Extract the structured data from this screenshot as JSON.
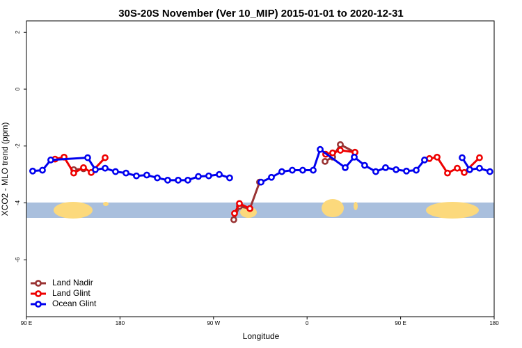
{
  "chart_data": {
    "type": "line",
    "title": "30S-20S November (Ver 10_MIP)   2015-01-01 to 2020-12-31",
    "xlabel": "Longitude",
    "ylabel": "XCO2 - MLO trend (ppm)",
    "xlim": [
      90,
      540
    ],
    "ylim": [
      -8,
      2.4
    ],
    "xticks": [
      {
        "value": 90,
        "label": "90 E"
      },
      {
        "value": 180,
        "label": "180"
      },
      {
        "value": 270,
        "label": "90 W"
      },
      {
        "value": 360,
        "label": "0"
      },
      {
        "value": 450,
        "label": "90 E"
      },
      {
        "value": 540,
        "label": "180"
      }
    ],
    "yticks": [
      2,
      0,
      -2,
      -4,
      -6
    ],
    "legend": "bottom-left",
    "series": [
      {
        "name": "Land Nadir",
        "color": "#993333",
        "x": [
          135.5,
          144.9,
          null,
          289.5,
          294.9,
          305.0,
          314.3,
          null,
          377.3,
          384.6,
          392.0,
          406.1
        ],
        "values": [
          -2.83,
          -2.8,
          null,
          -4.59,
          -4.12,
          -4.2,
          -3.27,
          null,
          -2.54,
          -2.39,
          -1.95,
          -2.22
        ]
      },
      {
        "name": "Land Glint",
        "color": "#ee0000",
        "x": [
          117.5,
          126.2,
          135.5,
          144.9,
          152.3,
          165.7,
          null,
          290.2,
          294.9,
          305.0,
          null,
          377.9,
          384.6,
          392.0,
          406.1,
          null,
          477.7,
          485.1,
          495.1,
          504.5,
          511.2,
          525.9
        ],
        "values": [
          -2.46,
          -2.39,
          -2.95,
          -2.76,
          -2.93,
          -2.41,
          null,
          -4.37,
          -4.02,
          -4.2,
          null,
          -2.29,
          -2.24,
          -2.15,
          -2.22,
          null,
          -2.44,
          -2.39,
          -2.95,
          -2.78,
          -2.93,
          -2.41
        ]
      },
      {
        "name": "Ocean Glint",
        "color": "#0000ee",
        "x": [
          96.0,
          105.4,
          113.4,
          148.9,
          156.3,
          165.7,
          175.7,
          185.8,
          195.8,
          205.8,
          215.9,
          225.9,
          236.0,
          245.3,
          255.4,
          265.4,
          275.5,
          285.5,
          null,
          315.7,
          325.7,
          335.7,
          345.8,
          355.8,
          365.9,
          372.6,
          396.7,
          405.4,
          415.4,
          426.1,
          435.5,
          445.6,
          455.6,
          465.0,
          473.0,
          null,
          509.2,
          516.5,
          525.9,
          535.9
        ],
        "values": [
          -2.88,
          -2.85,
          -2.49,
          -2.41,
          -2.83,
          -2.78,
          -2.9,
          -2.95,
          -3.05,
          -3.02,
          -3.12,
          -3.2,
          -3.2,
          -3.2,
          -3.07,
          -3.05,
          -3.0,
          -3.12,
          null,
          -3.27,
          -3.1,
          -2.9,
          -2.85,
          -2.85,
          -2.85,
          -2.12,
          -2.76,
          -2.39,
          -2.68,
          -2.9,
          -2.76,
          -2.83,
          -2.88,
          -2.85,
          -2.49,
          null,
          -2.41,
          -2.83,
          -2.78,
          -2.9
        ]
      }
    ]
  }
}
